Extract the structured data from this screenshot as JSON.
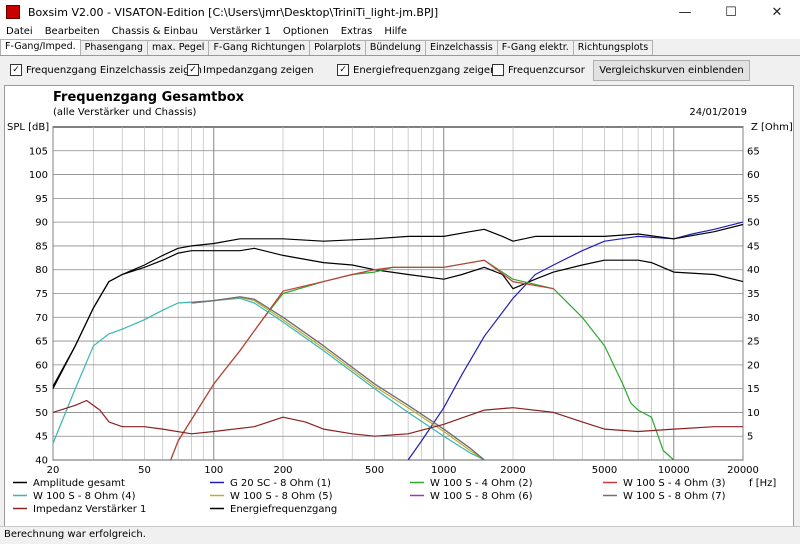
{
  "window": {
    "title": "Boxsim V2.00 - VISATON-Edition [C:\\Users\\jmr\\Desktop\\TriniTi_light-jm.BPJ]",
    "minimize": "—",
    "maximize": "☐",
    "close": "✕"
  },
  "menu": [
    "Datei",
    "Bearbeiten",
    "Chassis & Einbau",
    "Verstärker 1",
    "Optionen",
    "Extras",
    "Hilfe"
  ],
  "tabs": [
    "F-Gang/Imped.",
    "Phasengang",
    "max. Pegel",
    "F-Gang Richtungen",
    "Polarplots",
    "Bündelung",
    "Einzelchassis",
    "F-Gang elektr.",
    "Richtungsplots"
  ],
  "options": {
    "single_chassis": {
      "label": "Frequenzgang Einzelchassis zeigen",
      "checked": true
    },
    "impedance": {
      "label": "Impedanzgang zeigen",
      "checked": true
    },
    "energy": {
      "label": "Energiefrequenzgang zeigen",
      "checked": true
    },
    "cursor": {
      "label": "Frequenzcursor",
      "checked": false
    },
    "compare_button": "Vergleichskurven einblenden"
  },
  "status": "Berechnung war erfolgreich.",
  "chart_data": {
    "type": "line",
    "title": "Frequenzgang Gesamtbox",
    "subtitle": "(alle Verstärker und Chassis)",
    "date": "24/01/2019",
    "ylabel": "SPL [dB]",
    "y2label": "Z [Ohm]",
    "xlabel": "f [Hz]",
    "x_scale": "log",
    "xlim": [
      20,
      20000
    ],
    "ylim": [
      40,
      110
    ],
    "y2lim": [
      0,
      70
    ],
    "x_ticks": [
      20,
      50,
      100,
      200,
      500,
      1000,
      2000,
      5000,
      10000,
      20000
    ],
    "y_ticks": [
      40,
      45,
      50,
      55,
      60,
      65,
      70,
      75,
      80,
      85,
      90,
      95,
      100,
      105
    ],
    "y2_ticks": [
      5,
      10,
      15,
      20,
      25,
      30,
      35,
      40,
      45,
      50,
      55,
      60,
      65
    ],
    "grid": true,
    "series": [
      {
        "name": "Amplitude gesamt",
        "color": "#000000",
        "axis": "left",
        "points": [
          [
            20,
            55.5
          ],
          [
            25,
            64
          ],
          [
            30,
            72
          ],
          [
            35,
            77.5
          ],
          [
            40,
            79
          ],
          [
            50,
            80.5
          ],
          [
            60,
            82
          ],
          [
            70,
            83.5
          ],
          [
            80,
            84
          ],
          [
            100,
            84
          ],
          [
            130,
            84
          ],
          [
            150,
            84.5
          ],
          [
            200,
            83
          ],
          [
            300,
            81.5
          ],
          [
            400,
            81
          ],
          [
            500,
            80
          ],
          [
            700,
            79
          ],
          [
            1000,
            78
          ],
          [
            1200,
            79
          ],
          [
            1500,
            80.5
          ],
          [
            1800,
            79
          ],
          [
            2000,
            76
          ],
          [
            2500,
            78
          ],
          [
            3000,
            79.5
          ],
          [
            4000,
            81
          ],
          [
            5000,
            82
          ],
          [
            7000,
            82
          ],
          [
            8000,
            81.5
          ],
          [
            10000,
            79.5
          ],
          [
            15000,
            79
          ],
          [
            20000,
            77.5
          ]
        ]
      },
      {
        "name": "G 20 SC - 8 Ohm (1)",
        "color": "#1f1fb4",
        "axis": "left",
        "points": [
          [
            700,
            40
          ],
          [
            800,
            44
          ],
          [
            1000,
            51
          ],
          [
            1200,
            58
          ],
          [
            1500,
            66
          ],
          [
            2000,
            74
          ],
          [
            2500,
            79
          ],
          [
            3000,
            81
          ],
          [
            4000,
            84
          ],
          [
            5000,
            86
          ],
          [
            7000,
            87
          ],
          [
            10000,
            86.5
          ],
          [
            12000,
            87.5
          ],
          [
            15000,
            88.5
          ],
          [
            20000,
            90
          ]
        ]
      },
      {
        "name": "W 100 S - 4 Ohm (2)",
        "color": "#2ea82e",
        "axis": "left",
        "points": [
          [
            65,
            40
          ],
          [
            70,
            44
          ],
          [
            100,
            56
          ],
          [
            130,
            63
          ],
          [
            160,
            69
          ],
          [
            200,
            75
          ],
          [
            300,
            77.5
          ],
          [
            400,
            79
          ],
          [
            500,
            79.5
          ],
          [
            600,
            80.5
          ],
          [
            800,
            80.5
          ],
          [
            1000,
            80.5
          ],
          [
            1500,
            82
          ],
          [
            2000,
            78
          ],
          [
            3000,
            76
          ],
          [
            4000,
            70
          ],
          [
            5000,
            64
          ],
          [
            6000,
            56
          ],
          [
            6500,
            52
          ],
          [
            7000,
            50.5
          ],
          [
            8000,
            49
          ],
          [
            9000,
            42
          ],
          [
            10000,
            40
          ]
        ]
      },
      {
        "name": "W 100 S - 4 Ohm (3)",
        "color": "#c43c3c",
        "axis": "left",
        "points": [
          [
            65,
            40
          ],
          [
            70,
            44
          ],
          [
            100,
            56
          ],
          [
            130,
            63
          ],
          [
            160,
            69
          ],
          [
            200,
            75.5
          ],
          [
            300,
            77.5
          ],
          [
            400,
            79
          ],
          [
            500,
            80
          ],
          [
            600,
            80.5
          ],
          [
            800,
            80.5
          ],
          [
            1000,
            80.5
          ],
          [
            1500,
            82
          ],
          [
            2000,
            77.5
          ],
          [
            3000,
            76
          ]
        ]
      },
      {
        "name": "W 100 S - 8 Ohm (4)",
        "color": "#3ab5b5",
        "axis": "left",
        "points": [
          [
            20,
            43.5
          ],
          [
            25,
            55
          ],
          [
            30,
            64
          ],
          [
            35,
            66.5
          ],
          [
            40,
            67.5
          ],
          [
            50,
            69.5
          ],
          [
            60,
            71.5
          ],
          [
            70,
            73
          ],
          [
            100,
            73.5
          ],
          [
            130,
            74
          ],
          [
            150,
            73
          ],
          [
            200,
            69
          ],
          [
            300,
            63
          ],
          [
            500,
            55
          ],
          [
            700,
            50
          ],
          [
            1000,
            45
          ],
          [
            1300,
            41.5
          ],
          [
            1500,
            40
          ]
        ]
      },
      {
        "name": "W 100 S - 8 Ohm (5)",
        "color": "#b8b030",
        "axis": "left",
        "points": [
          [
            80,
            73
          ],
          [
            100,
            73.5
          ],
          [
            130,
            74.2
          ],
          [
            150,
            73.5
          ],
          [
            200,
            69.5
          ],
          [
            300,
            63.5
          ],
          [
            500,
            55.5
          ],
          [
            700,
            51
          ],
          [
            1000,
            46
          ],
          [
            1300,
            42
          ],
          [
            1500,
            40
          ]
        ]
      },
      {
        "name": "W 100 S - 8 Ohm (6)",
        "color": "#9a3ab0",
        "axis": "left",
        "points": [
          [
            80,
            73
          ],
          [
            100,
            73.5
          ],
          [
            130,
            74.3
          ],
          [
            150,
            73.8
          ],
          [
            200,
            70
          ],
          [
            300,
            64
          ],
          [
            500,
            56
          ],
          [
            700,
            51.5
          ],
          [
            1000,
            46.5
          ],
          [
            1300,
            42.5
          ],
          [
            1500,
            40
          ]
        ]
      },
      {
        "name": "W 100 S - 8 Ohm (7)",
        "color": "#707070",
        "axis": "left",
        "points": [
          [
            80,
            73
          ],
          [
            100,
            73.5
          ],
          [
            130,
            74.3
          ],
          [
            150,
            73.8
          ],
          [
            200,
            70
          ],
          [
            300,
            64
          ],
          [
            500,
            56
          ],
          [
            700,
            51.5
          ],
          [
            1000,
            46.5
          ],
          [
            1300,
            42.5
          ],
          [
            1500,
            40
          ]
        ]
      },
      {
        "name": "Impedanz Verstärker 1",
        "color": "#8b2020",
        "axis": "right",
        "points": [
          [
            20,
            10
          ],
          [
            25,
            11.5
          ],
          [
            28,
            12.5
          ],
          [
            32,
            10.5
          ],
          [
            35,
            8
          ],
          [
            40,
            7
          ],
          [
            50,
            7
          ],
          [
            60,
            6.5
          ],
          [
            80,
            5.5
          ],
          [
            100,
            6
          ],
          [
            150,
            7
          ],
          [
            200,
            9
          ],
          [
            250,
            8
          ],
          [
            300,
            6.5
          ],
          [
            400,
            5.5
          ],
          [
            500,
            5
          ],
          [
            700,
            5.5
          ],
          [
            1000,
            7.5
          ],
          [
            1500,
            10.5
          ],
          [
            2000,
            11
          ],
          [
            3000,
            10
          ],
          [
            4000,
            8
          ],
          [
            5000,
            6.5
          ],
          [
            7000,
            6
          ],
          [
            10000,
            6.5
          ],
          [
            15000,
            7
          ],
          [
            20000,
            7
          ]
        ]
      },
      {
        "name": "Energiefrequenzgang",
        "color": "#000000",
        "axis": "left",
        "points": [
          [
            20,
            55
          ],
          [
            25,
            64
          ],
          [
            30,
            72
          ],
          [
            35,
            77.5
          ],
          [
            40,
            79
          ],
          [
            50,
            81
          ],
          [
            60,
            83
          ],
          [
            70,
            84.5
          ],
          [
            80,
            85
          ],
          [
            100,
            85.5
          ],
          [
            130,
            86.5
          ],
          [
            150,
            86.5
          ],
          [
            200,
            86.5
          ],
          [
            300,
            86
          ],
          [
            500,
            86.5
          ],
          [
            700,
            87
          ],
          [
            1000,
            87
          ],
          [
            1300,
            88
          ],
          [
            1500,
            88.5
          ],
          [
            1800,
            87
          ],
          [
            2000,
            86
          ],
          [
            2500,
            87
          ],
          [
            3000,
            87
          ],
          [
            5000,
            87
          ],
          [
            7000,
            87.5
          ],
          [
            10000,
            86.5
          ],
          [
            15000,
            88
          ],
          [
            20000,
            89.5
          ]
        ]
      }
    ]
  }
}
